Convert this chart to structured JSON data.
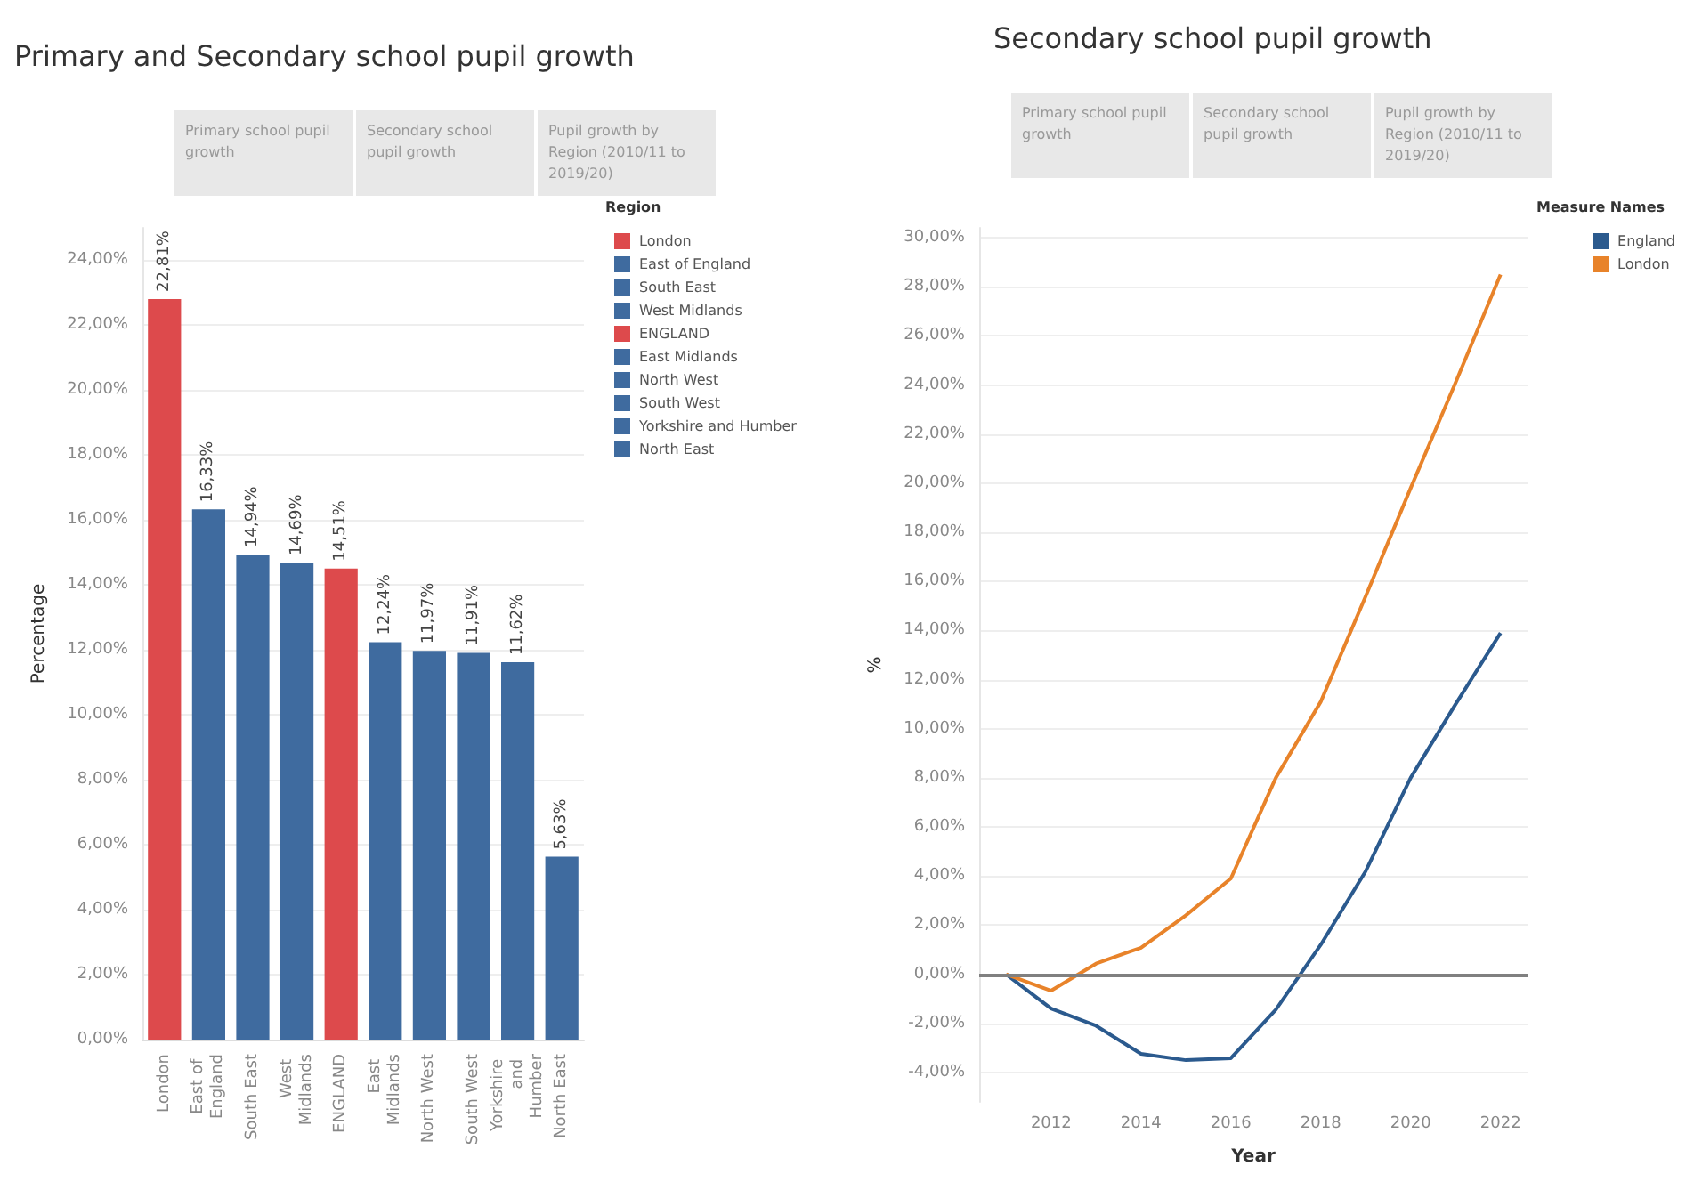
{
  "chart_data": [
    {
      "type": "bar",
      "title": "Primary and Secondary school pupil growth",
      "annotations": [
        "Primary school pupil growth",
        "Secondary school pupil growth",
        "Pupil growth by Region (2010/11 to 2019/20)"
      ],
      "ylabel": "Percentage",
      "legend_title": "Region",
      "legend": "top right",
      "grid": "y",
      "stacked": true,
      "categories": [
        "London",
        "East of England",
        "South East",
        "West Midlands",
        "ENGLAND",
        "East Midlands",
        "North West",
        "South West",
        "Yorkshire and Humber",
        "North East"
      ],
      "series": [
        {
          "name": "London",
          "color": "#dd4a4c",
          "values": [
            22.81,
            null,
            null,
            null,
            null,
            null,
            null,
            null,
            null,
            null
          ],
          "value_labels": [
            "22,81%",
            null,
            null,
            null,
            null,
            null,
            null,
            null,
            null,
            null
          ]
        },
        {
          "name": "East of England",
          "color": "#3f6b9f",
          "values": [
            null,
            16.33,
            null,
            null,
            null,
            null,
            null,
            null,
            null,
            null
          ],
          "value_labels": [
            null,
            "16,33%",
            null,
            null,
            null,
            null,
            null,
            null,
            null,
            null
          ]
        },
        {
          "name": "South East",
          "color": "#3f6b9f",
          "values": [
            null,
            null,
            14.94,
            null,
            null,
            null,
            null,
            null,
            null,
            null
          ],
          "value_labels": [
            null,
            null,
            "14,94%",
            null,
            null,
            null,
            null,
            null,
            null,
            null
          ]
        },
        {
          "name": "West Midlands",
          "color": "#3f6b9f",
          "values": [
            null,
            null,
            null,
            14.69,
            null,
            null,
            null,
            null,
            null,
            null
          ],
          "value_labels": [
            null,
            null,
            null,
            "14,69%",
            null,
            null,
            null,
            null,
            null,
            null
          ]
        },
        {
          "name": "ENGLAND",
          "color": "#dd4a4c",
          "values": [
            null,
            null,
            null,
            null,
            14.51,
            null,
            null,
            null,
            null,
            null
          ],
          "value_labels": [
            null,
            null,
            null,
            null,
            "14,51%",
            null,
            null,
            null,
            null,
            null
          ]
        },
        {
          "name": "East Midlands",
          "color": "#3f6b9f",
          "values": [
            null,
            null,
            null,
            null,
            null,
            12.24,
            null,
            null,
            null,
            null
          ],
          "value_labels": [
            null,
            null,
            null,
            null,
            null,
            "12,24%",
            null,
            null,
            null,
            null
          ]
        },
        {
          "name": "North West",
          "color": "#3f6b9f",
          "values": [
            null,
            null,
            null,
            null,
            null,
            null,
            11.97,
            null,
            null,
            null
          ],
          "value_labels": [
            null,
            null,
            null,
            null,
            null,
            null,
            "11,97%",
            null,
            null,
            null
          ]
        },
        {
          "name": "South West",
          "color": "#3f6b9f",
          "values": [
            null,
            null,
            null,
            null,
            null,
            null,
            null,
            11.91,
            null,
            null
          ],
          "value_labels": [
            null,
            null,
            null,
            null,
            null,
            null,
            null,
            "11,91%",
            null,
            null
          ]
        },
        {
          "name": "Yorkshire and Humber",
          "color": "#3f6b9f",
          "values": [
            null,
            null,
            null,
            null,
            null,
            null,
            null,
            null,
            11.62,
            null
          ],
          "value_labels": [
            null,
            null,
            null,
            null,
            null,
            null,
            null,
            null,
            "11,62%",
            null
          ]
        },
        {
          "name": "North East",
          "color": "#3f6b9f",
          "values": [
            null,
            null,
            null,
            null,
            null,
            null,
            null,
            null,
            null,
            5.63
          ],
          "value_labels": [
            null,
            null,
            null,
            null,
            null,
            null,
            null,
            null,
            null,
            "5,63%"
          ]
        }
      ],
      "ylim": [
        0,
        25
      ],
      "yticks": [
        {
          "value": 0,
          "label": "0,00%"
        },
        {
          "value": 2,
          "label": "2,00%"
        },
        {
          "value": 4,
          "label": "4,00%"
        },
        {
          "value": 6,
          "label": "6,00%"
        },
        {
          "value": 8,
          "label": "8,00%"
        },
        {
          "value": 10,
          "label": "10,00%"
        },
        {
          "value": 12,
          "label": "12,00%"
        },
        {
          "value": 14,
          "label": "14,00%"
        },
        {
          "value": 16,
          "label": "16,00%"
        },
        {
          "value": 18,
          "label": "18,00%"
        },
        {
          "value": 20,
          "label": "20,00%"
        },
        {
          "value": 22,
          "label": "22,00%"
        },
        {
          "value": 24,
          "label": "24,00%"
        }
      ]
    },
    {
      "type": "line",
      "title": "Secondary school pupil growth",
      "annotations": [
        "Primary school pupil growth",
        "Secondary school pupil growth",
        "Pupil growth by Region (2010/11 to 2019/20)"
      ],
      "xlabel": "Year",
      "ylabel": "%",
      "legend_title": "Measure Names",
      "legend": "top right",
      "grid": "y",
      "x": [
        2011,
        2012,
        2013,
        2014,
        2015,
        2016,
        2017,
        2018,
        2019,
        2020,
        2021,
        2022
      ],
      "series": [
        {
          "name": "England",
          "color": "#2b5a8e",
          "values": [
            0,
            -1.4,
            -2.1,
            -3.24,
            -3.5,
            -3.42,
            -1.44,
            1.2,
            4.2,
            8.0,
            11.0,
            13.9
          ]
        },
        {
          "name": "London",
          "color": "#e8832a",
          "values": [
            0,
            -0.67,
            0.43,
            1.08,
            2.4,
            3.9,
            8.0,
            11.1,
            15.4,
            19.8,
            24.1,
            28.5
          ]
        }
      ],
      "ref_lines": [
        {
          "axis": "y",
          "value": 0,
          "color": "#808080"
        }
      ],
      "xlim": [
        2010.4,
        2022.6
      ],
      "xticks": [
        2012,
        2014,
        2016,
        2018,
        2020,
        2022
      ],
      "ylim": [
        -5.2,
        30.4
      ],
      "yticks": [
        {
          "value": -4,
          "label": "-4,00%"
        },
        {
          "value": -2,
          "label": "-2,00%"
        },
        {
          "value": 0,
          "label": "0,00%"
        },
        {
          "value": 2,
          "label": "2,00%"
        },
        {
          "value": 4,
          "label": "4,00%"
        },
        {
          "value": 6,
          "label": "6,00%"
        },
        {
          "value": 8,
          "label": "8,00%"
        },
        {
          "value": 10,
          "label": "10,00%"
        },
        {
          "value": 12,
          "label": "12,00%"
        },
        {
          "value": 14,
          "label": "14,00%"
        },
        {
          "value": 16,
          "label": "16,00%"
        },
        {
          "value": 18,
          "label": "18,00%"
        },
        {
          "value": 20,
          "label": "20,00%"
        },
        {
          "value": 22,
          "label": "22,00%"
        },
        {
          "value": 24,
          "label": "24,00%"
        },
        {
          "value": 26,
          "label": "26,00%"
        },
        {
          "value": 28,
          "label": "28,00%"
        },
        {
          "value": 30,
          "label": "30,00%"
        }
      ]
    }
  ]
}
